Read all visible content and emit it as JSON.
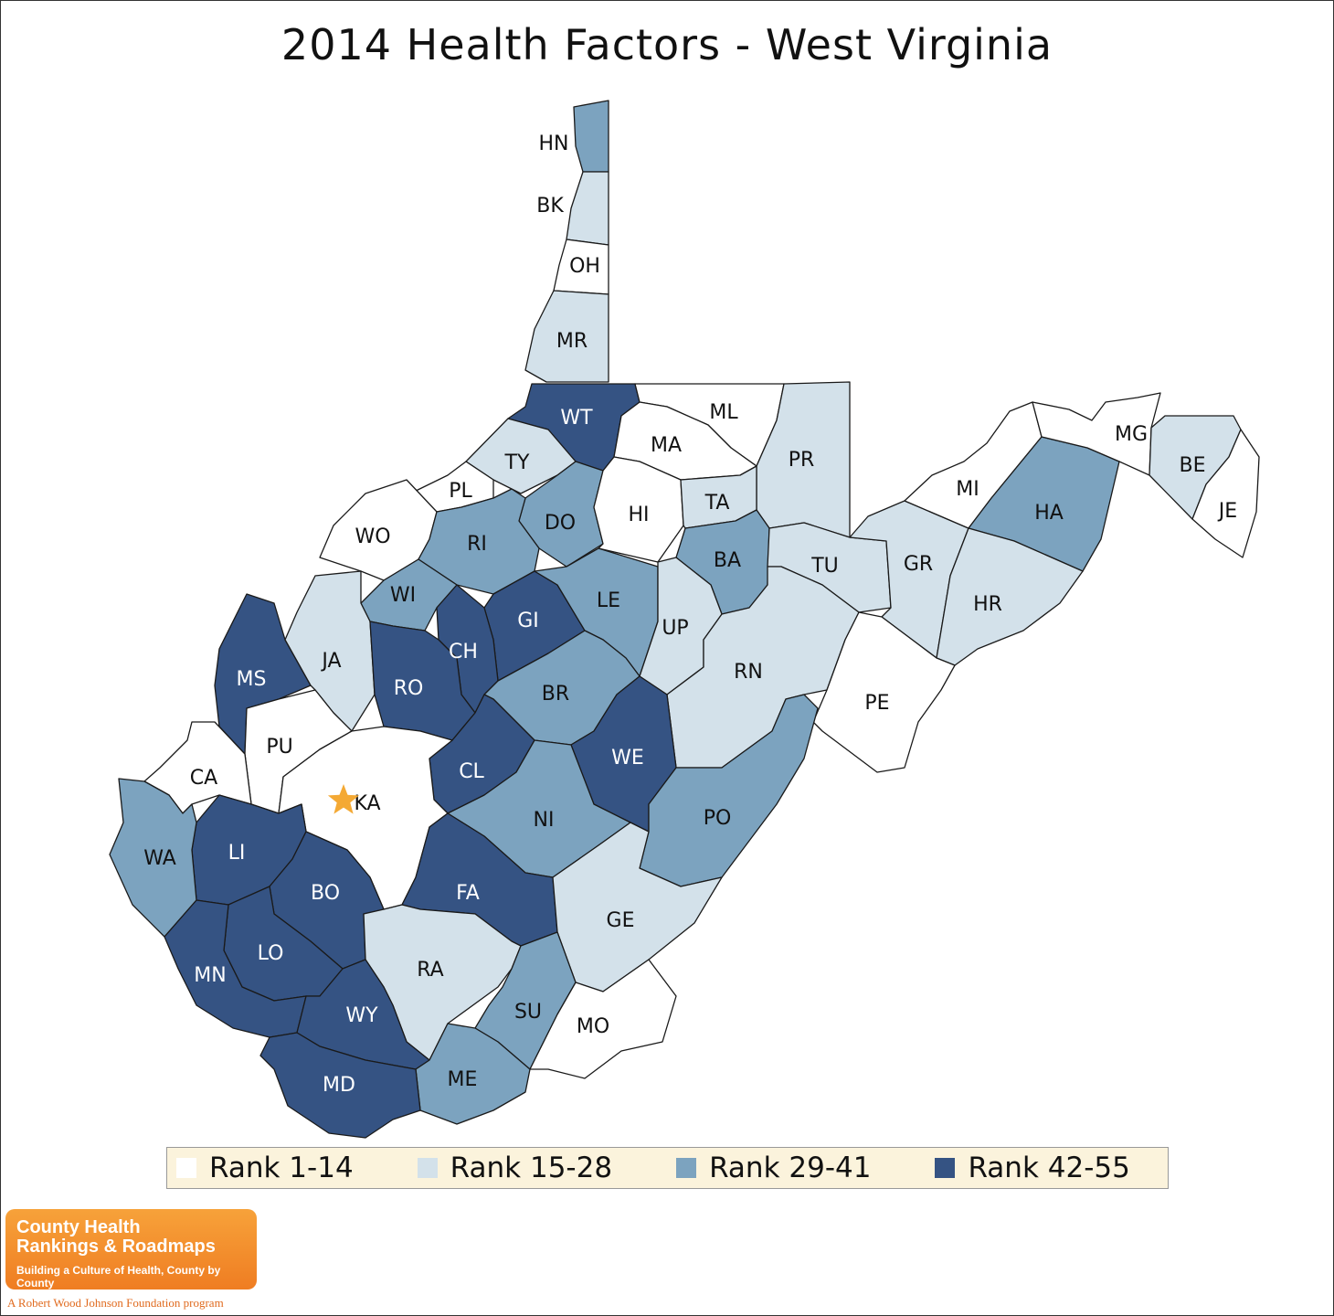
{
  "title": "2014 Health Factors - West Virginia",
  "colors": {
    "rank1": "#ffffff",
    "rank2": "#d3e1ea",
    "rank3": "#7ca3bf",
    "rank4": "#355383",
    "star": "#f4a934"
  },
  "legend": [
    {
      "label": "Rank 1-14",
      "class": "rank1"
    },
    {
      "label": "Rank 15-28",
      "class": "rank2"
    },
    {
      "label": "Rank 29-41",
      "class": "rank3"
    },
    {
      "label": "Rank 42-55",
      "class": "rank4"
    }
  ],
  "counties": [
    {
      "abbr": "HN",
      "class": "rank3"
    },
    {
      "abbr": "BK",
      "class": "rank2"
    },
    {
      "abbr": "OH",
      "class": "rank1"
    },
    {
      "abbr": "MR",
      "class": "rank2"
    },
    {
      "abbr": "WT",
      "class": "rank4"
    },
    {
      "abbr": "ML",
      "class": "rank1"
    },
    {
      "abbr": "MA",
      "class": "rank1"
    },
    {
      "abbr": "PR",
      "class": "rank2"
    },
    {
      "abbr": "TY",
      "class": "rank2"
    },
    {
      "abbr": "PL",
      "class": "rank1"
    },
    {
      "abbr": "DO",
      "class": "rank3"
    },
    {
      "abbr": "HI",
      "class": "rank1"
    },
    {
      "abbr": "TA",
      "class": "rank2"
    },
    {
      "abbr": "WO",
      "class": "rank1"
    },
    {
      "abbr": "RI",
      "class": "rank3"
    },
    {
      "abbr": "BA",
      "class": "rank3"
    },
    {
      "abbr": "TU",
      "class": "rank2"
    },
    {
      "abbr": "GR",
      "class": "rank2"
    },
    {
      "abbr": "MI",
      "class": "rank1"
    },
    {
      "abbr": "HA",
      "class": "rank3"
    },
    {
      "abbr": "MG",
      "class": "rank1"
    },
    {
      "abbr": "BE",
      "class": "rank2"
    },
    {
      "abbr": "JE",
      "class": "rank1"
    },
    {
      "abbr": "WI",
      "class": "rank3"
    },
    {
      "abbr": "GI",
      "class": "rank4"
    },
    {
      "abbr": "LE",
      "class": "rank3"
    },
    {
      "abbr": "UP",
      "class": "rank2"
    },
    {
      "abbr": "HR",
      "class": "rank2"
    },
    {
      "abbr": "MS",
      "class": "rank4"
    },
    {
      "abbr": "JA",
      "class": "rank2"
    },
    {
      "abbr": "CH",
      "class": "rank4"
    },
    {
      "abbr": "RO",
      "class": "rank4"
    },
    {
      "abbr": "RN",
      "class": "rank2"
    },
    {
      "abbr": "BR",
      "class": "rank3"
    },
    {
      "abbr": "PE",
      "class": "rank1"
    },
    {
      "abbr": "PU",
      "class": "rank1"
    },
    {
      "abbr": "WE",
      "class": "rank4"
    },
    {
      "abbr": "CA",
      "class": "rank1"
    },
    {
      "abbr": "CL",
      "class": "rank4"
    },
    {
      "abbr": "KA",
      "class": "rank1"
    },
    {
      "abbr": "NI",
      "class": "rank3"
    },
    {
      "abbr": "PO",
      "class": "rank3"
    },
    {
      "abbr": "LI",
      "class": "rank4"
    },
    {
      "abbr": "WA",
      "class": "rank3"
    },
    {
      "abbr": "BO",
      "class": "rank4"
    },
    {
      "abbr": "FA",
      "class": "rank4"
    },
    {
      "abbr": "GE",
      "class": "rank2"
    },
    {
      "abbr": "LO",
      "class": "rank4"
    },
    {
      "abbr": "RA",
      "class": "rank2"
    },
    {
      "abbr": "MN",
      "class": "rank4"
    },
    {
      "abbr": "SU",
      "class": "rank3"
    },
    {
      "abbr": "WY",
      "class": "rank4"
    },
    {
      "abbr": "MO",
      "class": "rank1"
    },
    {
      "abbr": "ME",
      "class": "rank3"
    },
    {
      "abbr": "MD",
      "class": "rank4"
    }
  ],
  "capital_marker": "star-icon",
  "logo": {
    "line1": "County Health",
    "line2": "Rankings & Roadmaps",
    "tagline": "Building a Culture of Health, County by County",
    "foundation": "A Robert Wood Johnson Foundation program"
  }
}
